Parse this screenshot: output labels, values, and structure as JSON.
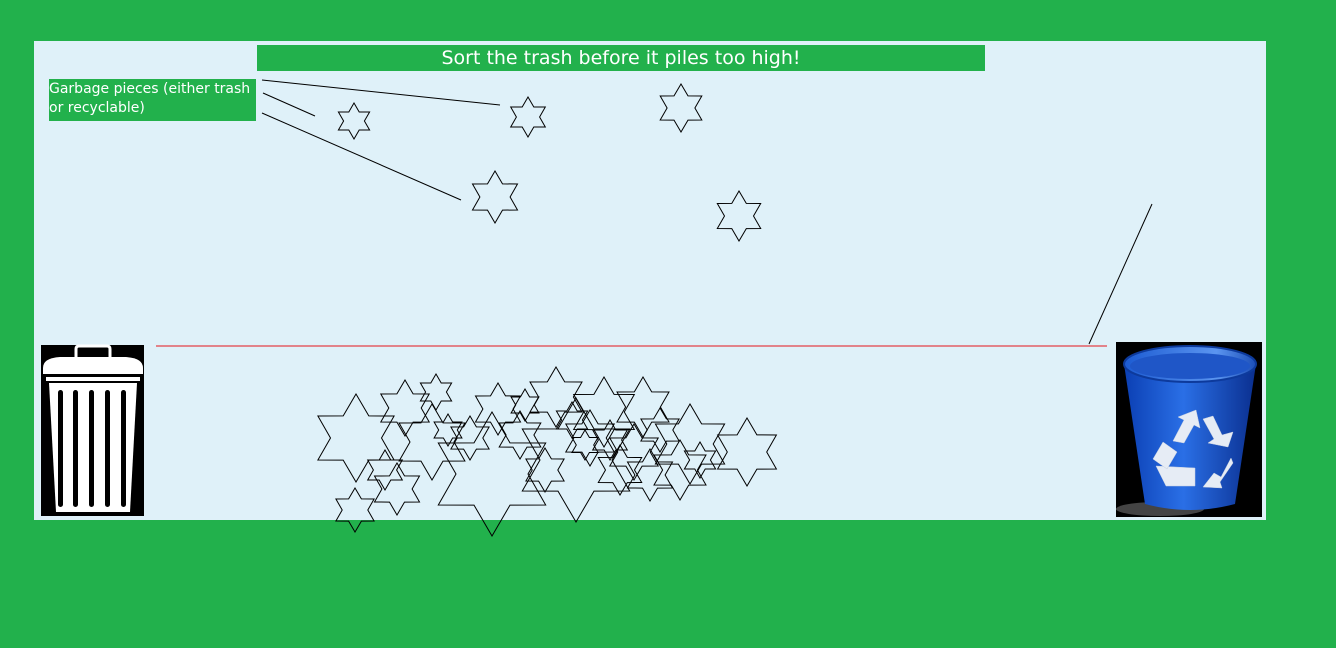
{
  "game": {
    "title": "Sort the trash before it piles too high!",
    "callout_text": "Garbage pieces (either trash or recyclable)"
  },
  "colors": {
    "background": "#22b14c",
    "play_area": "#dff1f9",
    "limit_line": "#e4151a",
    "recycle_bin": "#1f62d6",
    "trash_can": "#ffffff"
  },
  "icons": {
    "trash_bin": "trash-can-icon",
    "recycle_bin": "recycle-bin-icon",
    "garbage_piece": "six-point-star"
  },
  "falling_pieces": [
    {
      "id": "piece-1"
    },
    {
      "id": "piece-2"
    },
    {
      "id": "piece-3"
    },
    {
      "id": "piece-4"
    },
    {
      "id": "piece-5"
    }
  ],
  "pile_count": 30
}
